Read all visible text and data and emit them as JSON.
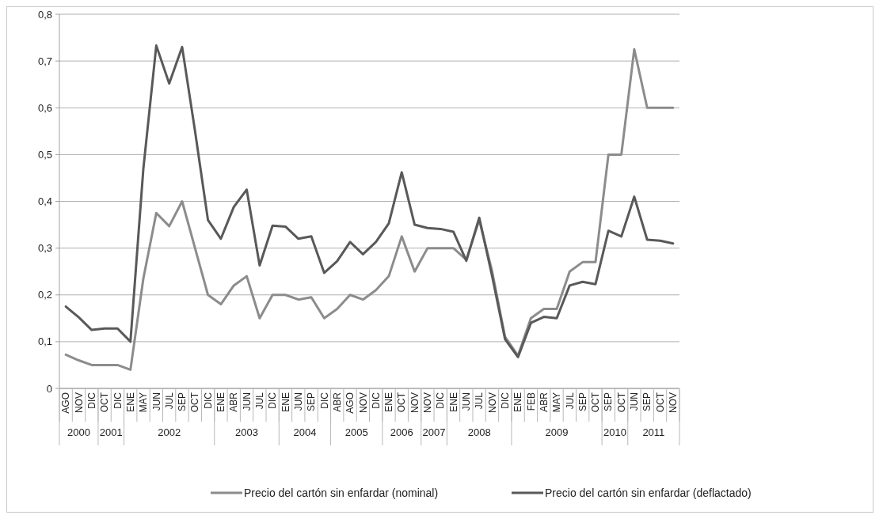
{
  "chart_data": {
    "type": "line",
    "categories": [
      "AGO",
      "NOV",
      "DIC",
      "OCT",
      "DIC",
      "ENE",
      "MAY",
      "JUN",
      "JUL",
      "SEP",
      "OCT",
      "DIC",
      "ENE",
      "ABR",
      "JUN",
      "JUL",
      "DIC",
      "ENE",
      "JUN",
      "SEP",
      "DIC",
      "ABR",
      "AGO",
      "NOV",
      "DIC",
      "ENE",
      "OCT",
      "NOV",
      "NOV",
      "DIC",
      "ENE",
      "JUN",
      "JUL",
      "NOV",
      "DIC",
      "ENE",
      "FEB",
      "ABR",
      "MAY",
      "JUL",
      "SEP",
      "OCT",
      "SEP",
      "OCT",
      "JUN",
      "SEP",
      "OCT",
      "NOV"
    ],
    "series": [
      {
        "name": "Precio del cartón sin enfardar (nominal)",
        "color": "#8c8c8c",
        "values": [
          0.072,
          0.06,
          0.05,
          0.05,
          0.05,
          0.04,
          0.235,
          0.375,
          0.347,
          0.4,
          0.3,
          0.2,
          0.18,
          0.22,
          0.24,
          0.15,
          0.2,
          0.2,
          0.19,
          0.195,
          0.15,
          0.17,
          0.2,
          0.19,
          0.21,
          0.24,
          0.325,
          0.25,
          0.3,
          0.3,
          0.3,
          0.275,
          0.36,
          0.25,
          0.11,
          0.07,
          0.15,
          0.17,
          0.17,
          0.25,
          0.27,
          0.27,
          0.5,
          0.5,
          0.725,
          0.6,
          0.6,
          0.6
        ]
      },
      {
        "name": "Precio del cartón sin enfardar (deflactado)",
        "color": "#595959",
        "values": [
          0.175,
          0.152,
          0.125,
          0.128,
          0.128,
          0.1,
          0.47,
          0.733,
          0.652,
          0.73,
          0.55,
          0.36,
          0.32,
          0.388,
          0.425,
          0.263,
          0.348,
          0.346,
          0.32,
          0.325,
          0.247,
          0.272,
          0.313,
          0.287,
          0.313,
          0.353,
          0.462,
          0.35,
          0.343,
          0.341,
          0.335,
          0.273,
          0.365,
          0.24,
          0.105,
          0.067,
          0.14,
          0.153,
          0.15,
          0.22,
          0.228,
          0.223,
          0.337,
          0.325,
          0.41,
          0.318,
          0.316,
          0.31
        ]
      }
    ],
    "ylim": [
      0,
      0.8
    ],
    "yticks": [
      0,
      {
        "value": 0.1,
        "label": "0,1"
      },
      {
        "value": 0.2,
        "label": "0,2"
      },
      {
        "value": 0.3,
        "label": "0,3"
      },
      {
        "value": 0.4,
        "label": "0,4"
      },
      {
        "value": 0.5,
        "label": "0,5"
      },
      {
        "value": 0.6,
        "label": "0,6"
      },
      {
        "value": 0.7,
        "label": "0,7"
      },
      {
        "value": 0.8,
        "label": "0,8"
      }
    ],
    "annotations": [
      "2000",
      "2001",
      "2002",
      "2003",
      "2004",
      "2005",
      "2006",
      "2007",
      "2008",
      "2009",
      "2010",
      "2011"
    ],
    "grid": "y",
    "legend": "bottom",
    "marker": "none",
    "line_style": "solid"
  }
}
